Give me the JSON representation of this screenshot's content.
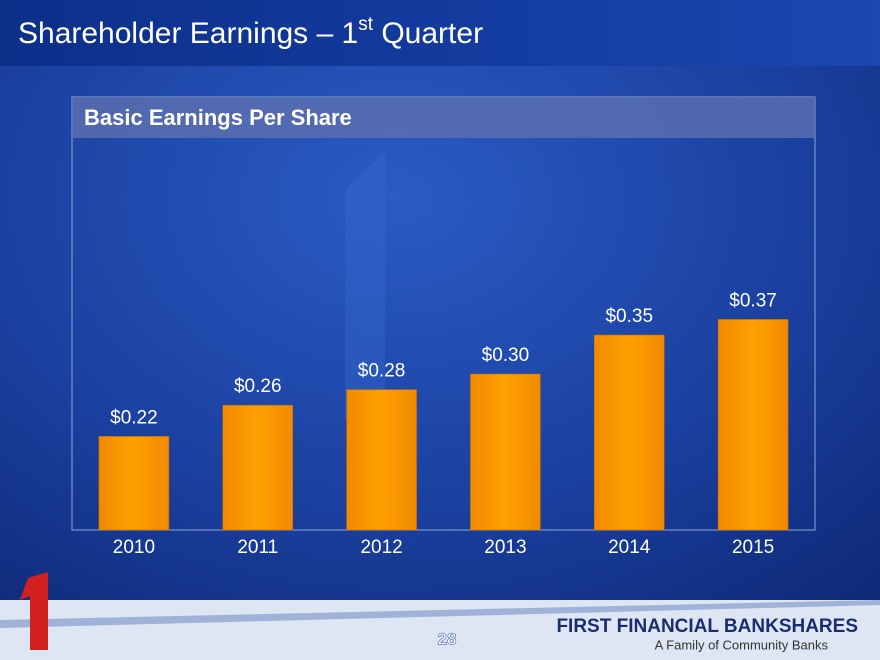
{
  "chart_data": {
    "type": "bar",
    "title": [
      "Shareholder Earnings – 1",
      "st",
      " Quarter"
    ],
    "subtitle": "Basic Earnings Per Share",
    "categories": [
      "2010",
      "2011",
      "2012",
      "2013",
      "2014",
      "2015"
    ],
    "values": [
      0.22,
      0.26,
      0.28,
      0.3,
      0.35,
      0.37
    ],
    "value_labels": [
      "$0.22",
      "$0.26",
      "$0.28",
      "$0.30",
      "$0.35",
      "$0.37"
    ],
    "color": "#ff9900",
    "ylim": [
      0.1,
      0.6
    ]
  },
  "footer": {
    "page_number": 28,
    "company": "FIRST FINANCIAL BANKSHARES",
    "tagline": "A Family of Community Banks"
  }
}
